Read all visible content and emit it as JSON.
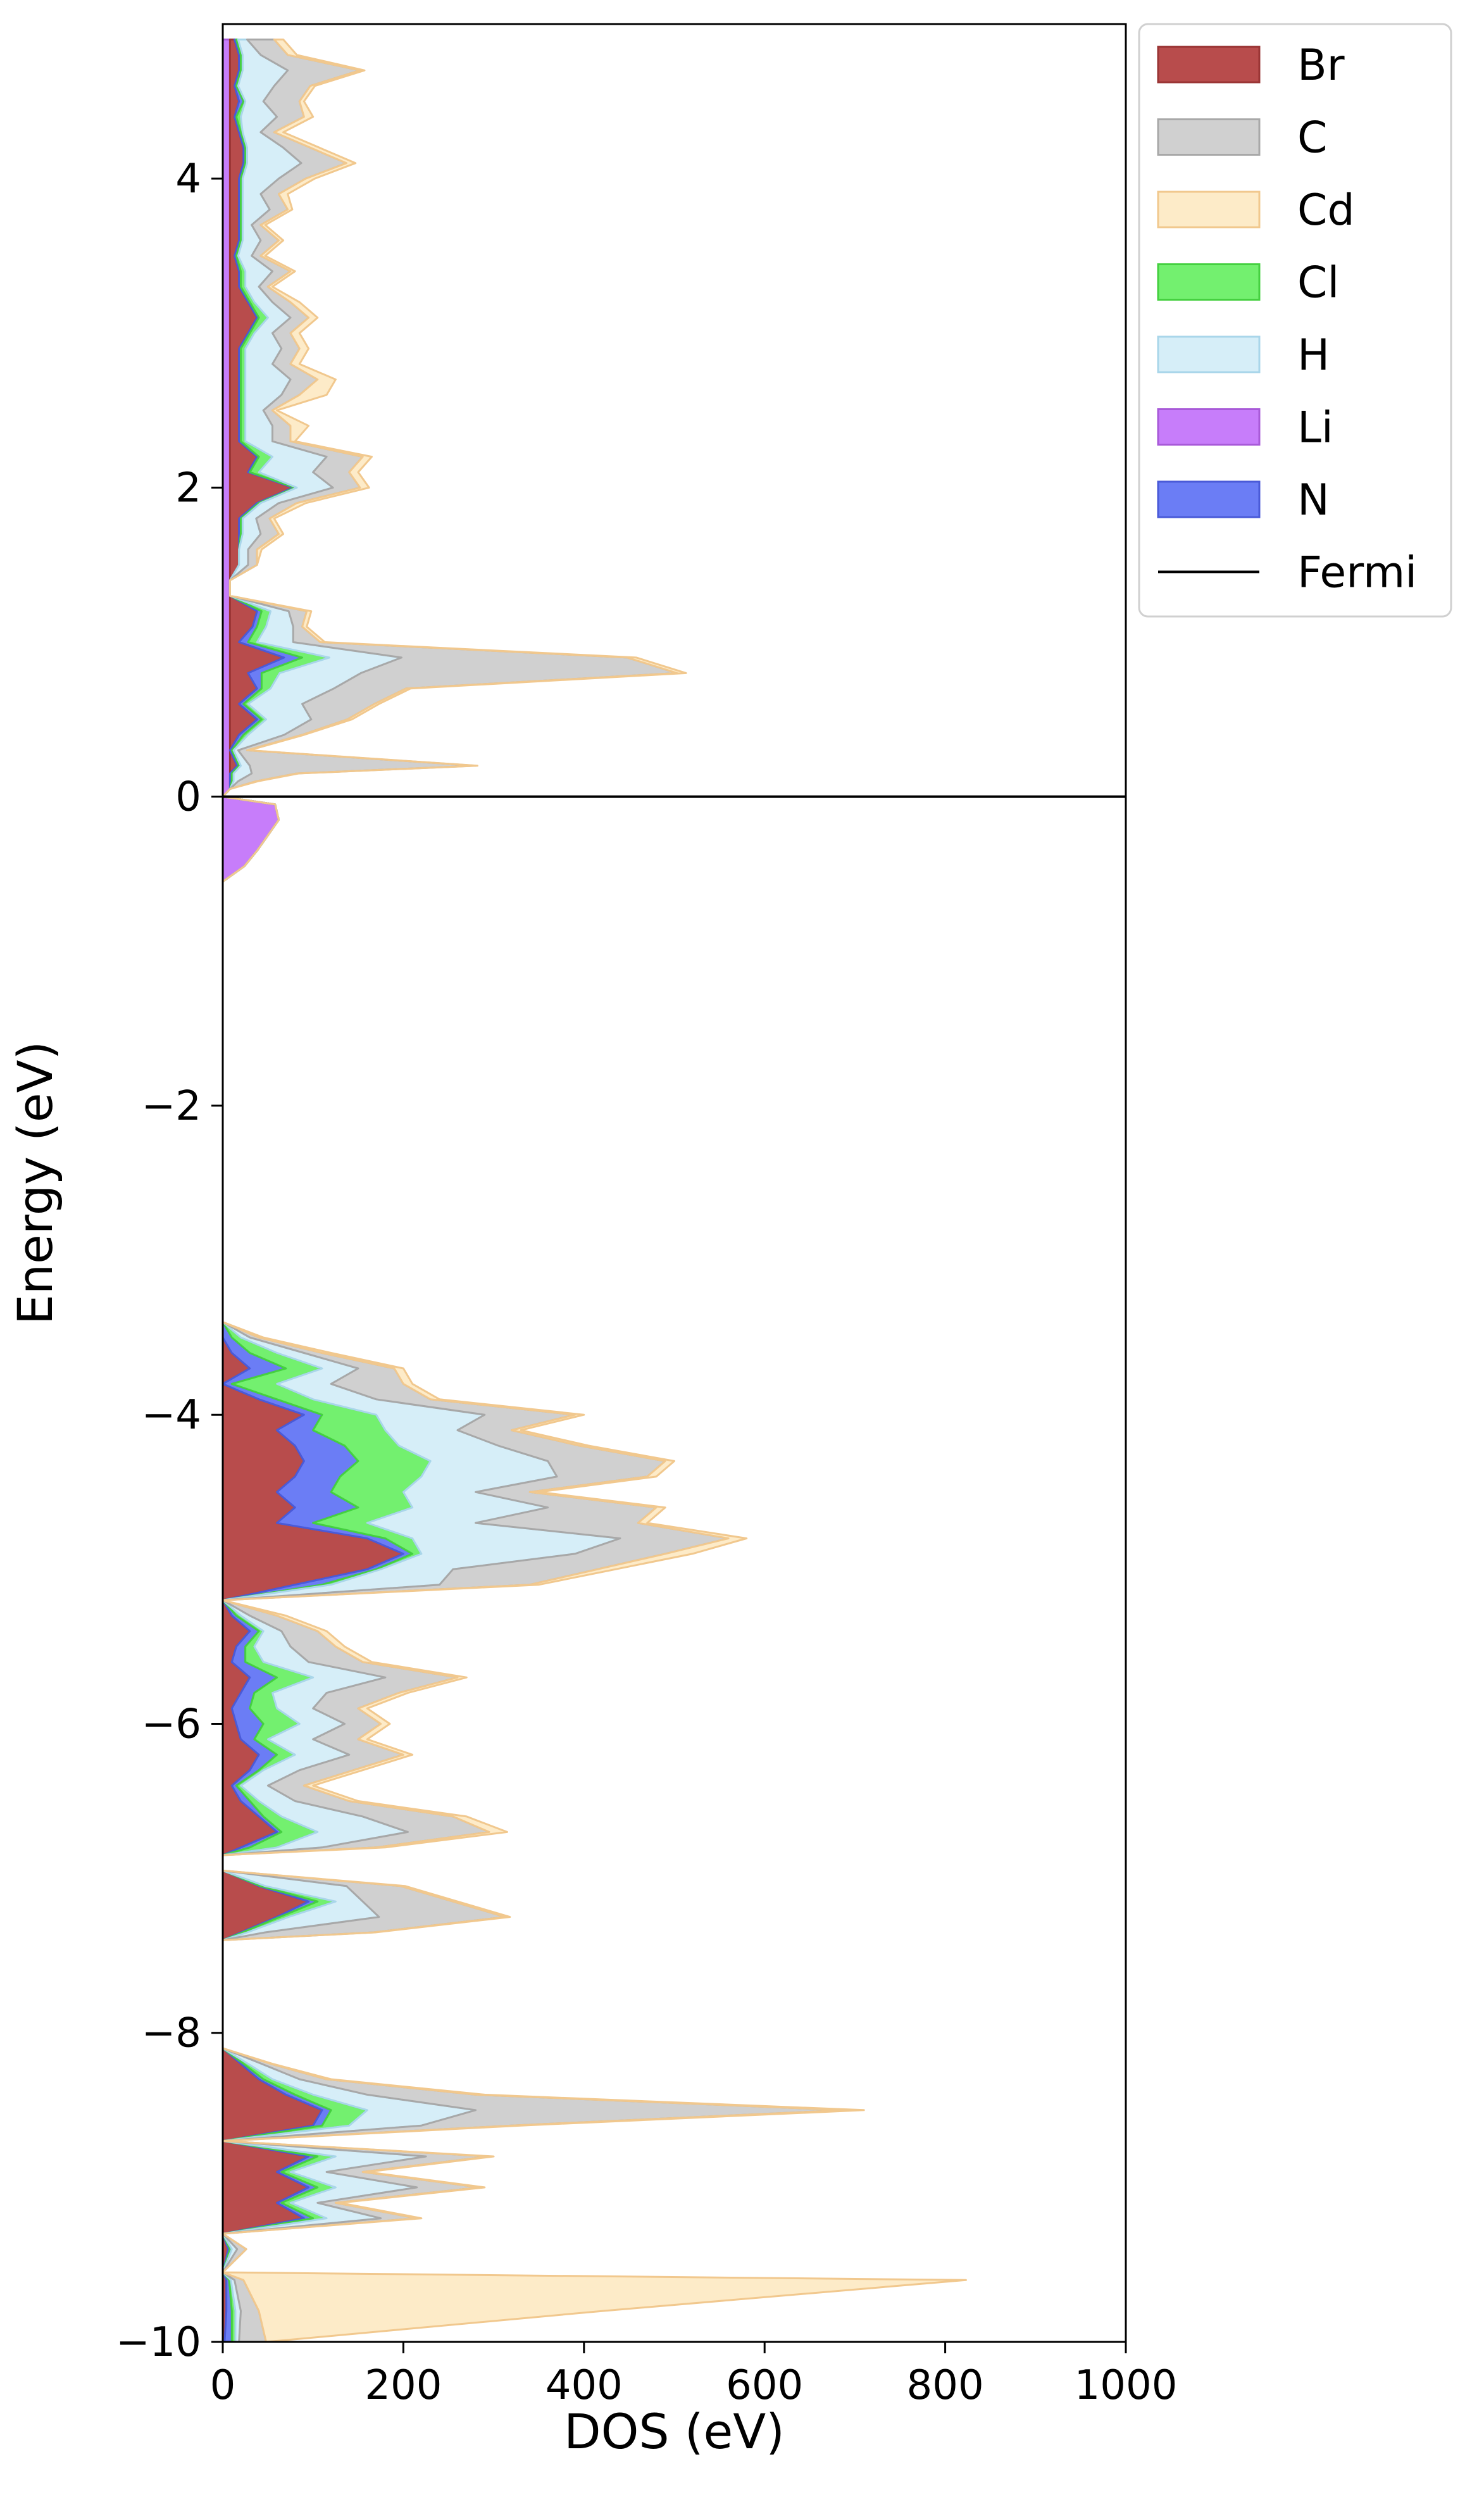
{
  "chart_data": {
    "type": "area",
    "orientation": "horizontal-stacked",
    "xlabel": "DOS (eV)",
    "ylabel": "Energy (eV)",
    "xlim": [
      0,
      1000
    ],
    "ylim": [
      -10,
      5
    ],
    "x_ticks": [
      "0",
      "200",
      "400",
      "600",
      "800",
      "1000"
    ],
    "y_ticks": [
      "−10",
      "−8",
      "−6",
      "−4",
      "−2",
      "0",
      "2",
      "4"
    ],
    "fermi_level": 0,
    "legend_position": "outside-top-right",
    "energy": [
      -10.0,
      -9.8,
      -9.6,
      -9.55,
      -9.4,
      -9.3,
      -9.2,
      -9.1,
      -9.0,
      -8.9,
      -8.8,
      -8.7,
      -8.6,
      -8.5,
      -8.4,
      -8.3,
      -8.2,
      -8.1,
      -8.0,
      -7.4,
      -7.35,
      -7.25,
      -7.15,
      -7.05,
      -6.95,
      -6.85,
      -6.8,
      -6.7,
      -6.6,
      -6.5,
      -6.4,
      -6.3,
      -6.2,
      -6.1,
      -6.0,
      -5.9,
      -5.8,
      -5.7,
      -5.6,
      -5.5,
      -5.4,
      -5.3,
      -5.2,
      -5.1,
      -5.0,
      -4.9,
      -4.8,
      -4.7,
      -4.6,
      -4.5,
      -4.4,
      -4.3,
      -4.2,
      -4.1,
      -4.0,
      -3.9,
      -3.8,
      -3.7,
      -3.6,
      -3.5,
      -3.4,
      -3.3,
      -0.55,
      -0.45,
      -0.35,
      -0.25,
      -0.15,
      -0.05,
      0.0,
      0.05,
      0.1,
      0.15,
      0.2,
      0.3,
      0.4,
      0.5,
      0.6,
      0.7,
      0.8,
      0.9,
      1.0,
      1.1,
      1.2,
      1.3,
      1.4,
      1.5,
      1.6,
      1.7,
      1.8,
      1.9,
      2.0,
      2.1,
      2.2,
      2.3,
      2.4,
      2.5,
      2.6,
      2.7,
      2.8,
      2.9,
      3.0,
      3.1,
      3.2,
      3.3,
      3.4,
      3.5,
      3.6,
      3.7,
      3.8,
      3.9,
      4.0,
      4.1,
      4.2,
      4.3,
      4.4,
      4.5,
      4.6,
      4.7,
      4.8,
      4.9
    ],
    "series": [
      {
        "name": "Li",
        "color": "#c77dfa",
        "edge": "#a85ad8",
        "values": [
          0,
          0,
          0,
          0,
          0,
          0,
          0,
          0,
          0,
          0,
          0,
          0,
          0,
          0,
          0,
          0,
          0,
          0,
          0,
          0,
          0,
          0,
          0,
          0,
          0,
          0,
          0,
          0,
          0,
          0,
          0,
          0,
          0,
          0,
          0,
          0,
          0,
          0,
          0,
          0,
          0,
          0,
          0,
          0,
          0,
          0,
          0,
          0,
          0,
          0,
          0,
          0,
          0,
          0,
          0,
          0,
          0,
          0,
          0,
          0,
          0,
          0,
          0,
          24,
          38,
          50,
          62,
          58,
          0,
          8,
          8,
          8,
          8,
          8,
          8,
          8,
          8,
          8,
          8,
          8,
          8,
          8,
          8,
          8,
          8,
          8,
          8,
          8,
          8,
          8,
          8,
          8,
          8,
          8,
          8,
          8,
          8,
          8,
          8,
          8,
          8,
          8,
          8,
          8,
          8,
          8,
          8,
          8,
          8,
          8,
          8,
          8,
          8,
          8,
          8,
          8,
          8,
          8,
          8,
          8,
          8
        ]
      },
      {
        "name": "Br",
        "color": "#b84c4c",
        "edge": "#9a3535",
        "values": [
          2,
          4,
          4,
          0,
          6,
          0,
          90,
          60,
          95,
          60,
          95,
          0,
          100,
          110,
          70,
          40,
          20,
          0,
          0,
          0,
          20,
          60,
          95,
          40,
          0,
          0,
          20,
          60,
          40,
          20,
          10,
          30,
          40,
          20,
          15,
          10,
          20,
          30,
          10,
          15,
          30,
          10,
          0,
          80,
          160,
          200,
          160,
          60,
          80,
          60,
          80,
          90,
          80,
          60,
          90,
          40,
          0,
          30,
          10,
          0,
          0,
          0,
          0,
          0,
          0,
          0,
          0,
          0,
          0,
          0,
          0,
          0,
          8,
          0,
          10,
          30,
          10,
          30,
          20,
          60,
          10,
          25,
          30,
          0,
          0,
          10,
          10,
          10,
          10,
          30,
          70,
          20,
          30,
          10,
          10,
          10,
          10,
          10,
          10,
          10,
          20,
          30,
          20,
          10,
          10,
          5,
          10,
          10,
          10,
          10,
          10,
          15,
          15,
          10,
          5,
          10,
          5,
          10,
          10,
          5
        ]
      },
      {
        "name": "N",
        "color": "#6b7df5",
        "edge": "#4a5ad8",
        "values": [
          8,
          6,
          3,
          0,
          2,
          0,
          10,
          5,
          10,
          5,
          10,
          0,
          10,
          10,
          10,
          5,
          3,
          0,
          0,
          0,
          2,
          3,
          10,
          2,
          0,
          0,
          10,
          5,
          5,
          10,
          5,
          10,
          20,
          15,
          30,
          20,
          15,
          30,
          15,
          10,
          10,
          5,
          0,
          30,
          10,
          10,
          20,
          40,
          70,
          60,
          50,
          60,
          55,
          40,
          20,
          20,
          10,
          40,
          20,
          10,
          0,
          0,
          0,
          0,
          0,
          0,
          0,
          0,
          0,
          0,
          2,
          2,
          2,
          2,
          5,
          5,
          5,
          5,
          15,
          20,
          10,
          5,
          5,
          0,
          0,
          0,
          0,
          2,
          2,
          2,
          2,
          2,
          2,
          2,
          2,
          2,
          2,
          2,
          2,
          2,
          2,
          2,
          2,
          2,
          2,
          2,
          2,
          2,
          2,
          2,
          2,
          2,
          2,
          2,
          2,
          5,
          2,
          2,
          2,
          2
        ]
      },
      {
        "name": "Cl",
        "color": "#73f06f",
        "edge": "#45d040",
        "values": [
          4,
          4,
          2,
          0,
          2,
          0,
          15,
          10,
          20,
          10,
          20,
          0,
          30,
          40,
          20,
          10,
          5,
          0,
          0,
          0,
          5,
          10,
          20,
          5,
          0,
          0,
          30,
          40,
          20,
          10,
          5,
          5,
          20,
          15,
          40,
          30,
          20,
          40,
          20,
          10,
          5,
          5,
          0,
          10,
          5,
          10,
          30,
          60,
          60,
          80,
          90,
          80,
          60,
          80,
          60,
          40,
          50,
          40,
          30,
          10,
          0,
          0,
          0,
          0,
          0,
          0,
          0,
          0,
          0,
          0,
          2,
          2,
          2,
          2,
          5,
          5,
          5,
          10,
          20,
          30,
          10,
          10,
          10,
          0,
          0,
          0,
          0,
          2,
          2,
          2,
          2,
          10,
          15,
          5,
          5,
          5,
          5,
          5,
          5,
          5,
          5,
          10,
          5,
          5,
          5,
          2,
          2,
          2,
          2,
          2,
          2,
          2,
          2,
          2,
          5,
          2,
          2,
          2,
          2,
          2
        ]
      },
      {
        "name": "H",
        "color": "#d6eef8",
        "edge": "#a9d6ea",
        "values": [
          4,
          6,
          4,
          0,
          6,
          0,
          60,
          30,
          90,
          40,
          100,
          0,
          80,
          120,
          60,
          30,
          15,
          0,
          0,
          0,
          20,
          100,
          30,
          90,
          0,
          0,
          50,
          100,
          90,
          40,
          30,
          40,
          60,
          50,
          50,
          40,
          60,
          80,
          50,
          40,
          20,
          10,
          0,
          120,
          80,
          170,
          230,
          120,
          150,
          80,
          150,
          130,
          110,
          80,
          120,
          70,
          60,
          40,
          30,
          10,
          0,
          0,
          0,
          0,
          0,
          0,
          0,
          0,
          0,
          0,
          5,
          20,
          10,
          5,
          40,
          50,
          60,
          70,
          90,
          80,
          40,
          30,
          20,
          0,
          0,
          10,
          10,
          20,
          15,
          20,
          40,
          60,
          60,
          30,
          30,
          20,
          40,
          50,
          30,
          40,
          20,
          25,
          20,
          15,
          30,
          15,
          20,
          10,
          30,
          20,
          40,
          60,
          40,
          20,
          40,
          20,
          40,
          50,
          20,
          10
        ]
      },
      {
        "name": "C",
        "color": "#d0d0d0",
        "edge": "#a8a8a8",
        "values": [
          30,
          20,
          10,
          0,
          10,
          0,
          40,
          20,
          70,
          40,
          70,
          0,
          100,
          410,
          120,
          30,
          10,
          0,
          0,
          0,
          120,
          140,
          100,
          60,
          0,
          0,
          60,
          90,
          100,
          60,
          40,
          60,
          60,
          50,
          40,
          50,
          80,
          80,
          60,
          50,
          40,
          30,
          0,
          100,
          160,
          100,
          120,
          180,
          120,
          60,
          100,
          130,
          90,
          60,
          100,
          60,
          80,
          40,
          20,
          10,
          0,
          0,
          0,
          0,
          0,
          0,
          0,
          0,
          0,
          0,
          20,
          50,
          250,
          10,
          20,
          40,
          80,
          80,
          350,
          250,
          30,
          10,
          20,
          0,
          0,
          10,
          10,
          20,
          15,
          20,
          30,
          40,
          40,
          20,
          20,
          10,
          20,
          30,
          20,
          20,
          20,
          20,
          20,
          10,
          20,
          10,
          20,
          10,
          20,
          20,
          30,
          50,
          30,
          15,
          30,
          40,
          40,
          80,
          30,
          30
        ]
      },
      {
        "name": "Cd",
        "color": "#fdebc8",
        "edge": "#f1c88e",
        "values": [
          0,
          380,
          800,
          0,
          0,
          0,
          5,
          5,
          5,
          5,
          5,
          0,
          10,
          20,
          10,
          5,
          2,
          0,
          0,
          0,
          2,
          5,
          5,
          5,
          0,
          0,
          10,
          20,
          15,
          10,
          10,
          10,
          10,
          10,
          10,
          10,
          10,
          10,
          10,
          10,
          10,
          10,
          0,
          10,
          20,
          30,
          20,
          10,
          10,
          10,
          10,
          10,
          10,
          10,
          10,
          10,
          10,
          10,
          10,
          5,
          0,
          0,
          0,
          0,
          0,
          0,
          0,
          0,
          0,
          0,
          2,
          2,
          2,
          2,
          2,
          5,
          5,
          5,
          10,
          10,
          5,
          5,
          5,
          0,
          0,
          0,
          5,
          5,
          5,
          10,
          10,
          10,
          10,
          5,
          20,
          5,
          30,
          20,
          10,
          10,
          10,
          10,
          10,
          5,
          5,
          5,
          5,
          5,
          5,
          10,
          10,
          10,
          10,
          10,
          10,
          5,
          5,
          5,
          10,
          10
        ]
      }
    ],
    "legend": [
      {
        "name": "Br",
        "color": "#b84c4c",
        "edge": "#9a3535"
      },
      {
        "name": "C",
        "color": "#d0d0d0",
        "edge": "#a8a8a8"
      },
      {
        "name": "Cd",
        "color": "#fdebc8",
        "edge": "#f1c88e"
      },
      {
        "name": "Cl",
        "color": "#73f06f",
        "edge": "#45d040"
      },
      {
        "name": "H",
        "color": "#d6eef8",
        "edge": "#a9d6ea"
      },
      {
        "name": "Li",
        "color": "#c77dfa",
        "edge": "#a85ad8"
      },
      {
        "name": "N",
        "color": "#6b7df5",
        "edge": "#4a5ad8"
      },
      {
        "name": "Fermi",
        "color": "#000000",
        "line": true
      }
    ]
  }
}
